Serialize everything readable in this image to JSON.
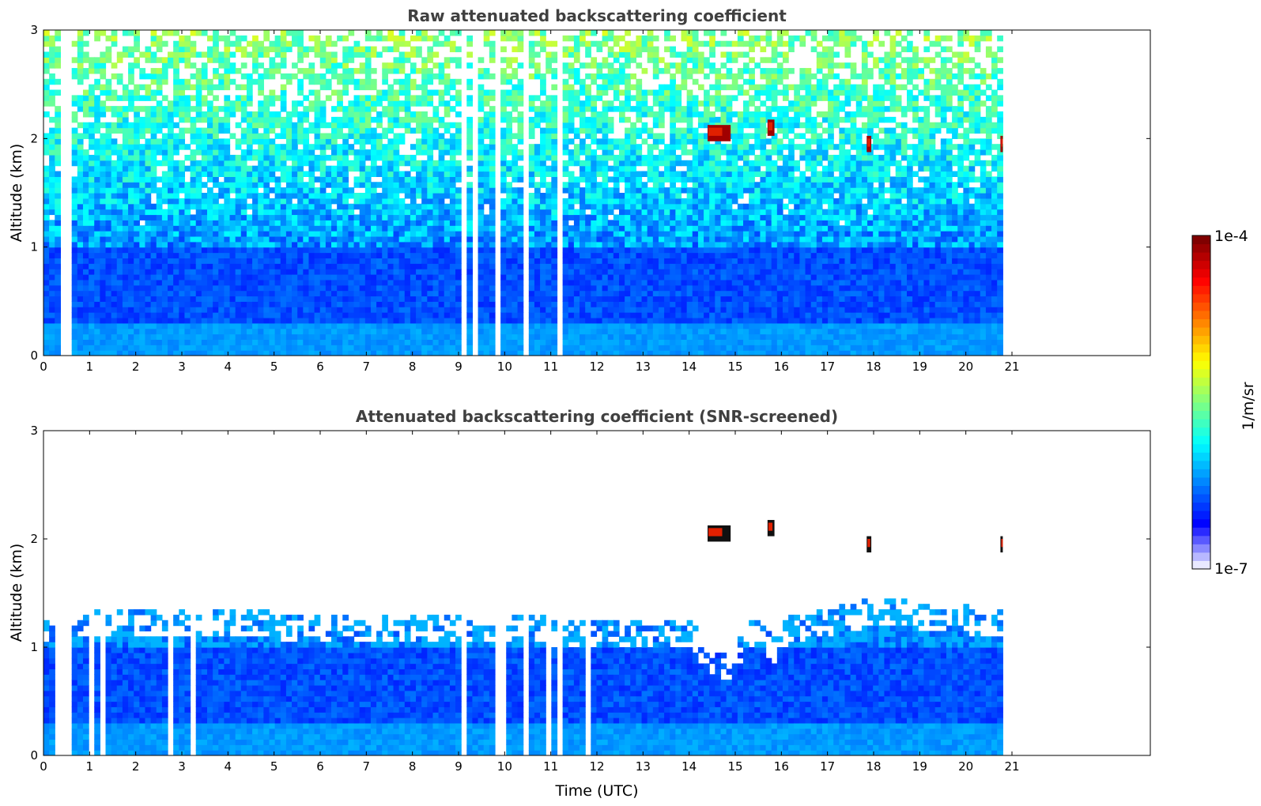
{
  "chart_data": [
    {
      "type": "heatmap",
      "title": "Raw attenuated backscattering coefficient",
      "xlabel": "",
      "ylabel": "Altitude (km)",
      "xlim": [
        0,
        24
      ],
      "ylim": [
        0,
        3
      ],
      "xticks": [
        0,
        1,
        2,
        3,
        4,
        5,
        6,
        7,
        8,
        9,
        10,
        11,
        12,
        13,
        14,
        15,
        16,
        17,
        18,
        19,
        20,
        21
      ],
      "yticks": [
        0,
        1,
        2,
        3
      ],
      "data_end_time": 20.8,
      "gap_times": [
        0.35,
        0.45,
        0.55,
        0.6,
        1.1,
        1.25,
        2.75,
        3.25,
        9.15,
        9.35,
        9.85,
        9.95,
        10.4,
        10.95,
        11.2,
        11.85
      ],
      "features": [
        {
          "kind": "cloud",
          "time_start": 14.4,
          "time_end": 14.9,
          "altitude": 2.05
        },
        {
          "kind": "cloud",
          "time_start": 15.7,
          "time_end": 15.85,
          "altitude": 2.1
        },
        {
          "kind": "cloud",
          "time_start": 17.85,
          "time_end": 17.95,
          "altitude": 1.95
        },
        {
          "kind": "cloud",
          "time_start": 20.75,
          "time_end": 20.8,
          "altitude": 1.95
        }
      ]
    },
    {
      "type": "heatmap",
      "title": "Attenuated backscattering coefficient (SNR-screened)",
      "xlabel": "Time (UTC)",
      "ylabel": "Altitude (km)",
      "xlim": [
        0,
        24
      ],
      "ylim": [
        0,
        3
      ],
      "xticks": [
        0,
        1,
        2,
        3,
        4,
        5,
        6,
        7,
        8,
        9,
        10,
        11,
        12,
        13,
        14,
        15,
        16,
        17,
        18,
        19,
        20,
        21
      ],
      "yticks": [
        0,
        1,
        2,
        3
      ],
      "data_end_time": 20.8,
      "screen_top_km": [
        [
          0,
          1.05
        ],
        [
          2,
          1.1
        ],
        [
          4,
          1.1
        ],
        [
          6,
          1.05
        ],
        [
          8,
          1.05
        ],
        [
          10,
          1.05
        ],
        [
          12,
          1.0
        ],
        [
          14,
          1.0
        ],
        [
          14.5,
          0.75
        ],
        [
          14.9,
          0.65
        ],
        [
          15.3,
          1.0
        ],
        [
          15.7,
          0.95
        ],
        [
          15.8,
          0.8
        ],
        [
          15.95,
          1.0
        ],
        [
          18,
          1.2
        ],
        [
          20.8,
          1.1
        ]
      ],
      "features": [
        {
          "kind": "cloud",
          "time_start": 14.4,
          "time_end": 14.9,
          "altitude": 2.05
        },
        {
          "kind": "cloud",
          "time_start": 15.7,
          "time_end": 15.85,
          "altitude": 2.1
        },
        {
          "kind": "cloud",
          "time_start": 17.85,
          "time_end": 17.95,
          "altitude": 1.95
        },
        {
          "kind": "cloud",
          "time_start": 20.75,
          "time_end": 20.8,
          "altitude": 1.95
        }
      ]
    }
  ],
  "colorbar": {
    "label": "1/m/sr",
    "min_label": "1e-7",
    "max_label": "1e-4",
    "scale": "log",
    "range": [
      1e-07,
      0.0001
    ],
    "colormap": "jet",
    "colors": [
      "#e8e8ff",
      "#0000ff",
      "#0080ff",
      "#00ffff",
      "#80ff80",
      "#ffff00",
      "#ff8000",
      "#ff0000",
      "#800000"
    ]
  }
}
